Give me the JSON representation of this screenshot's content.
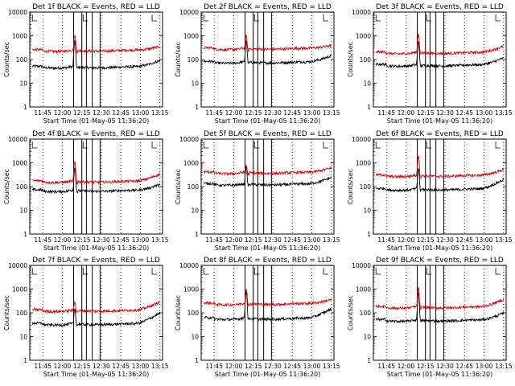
{
  "figure": {
    "start_time": "01-May-05 11:36:20",
    "xlabel": "Start Time (01-May-05 11:36:20)",
    "ylabel": "Counts/sec"
  },
  "chart_data": [
    {
      "type": "line",
      "title": "Det 1f BLACK = Events, RED = LLD",
      "xlabel": "Start Time (01-May-05 11:36:20)",
      "ylabel": "Counts/sec",
      "yscale": "log",
      "ylim": [
        1,
        10000
      ],
      "ytick_labels": [
        "1",
        "10",
        "100",
        "1000",
        "10000"
      ],
      "xtick_labels": [
        "11:45",
        "12:00",
        "12:15",
        "12:30",
        "12:45",
        "13:00",
        "13:15"
      ],
      "x_minutes": [
        0,
        15,
        30,
        45,
        60,
        75,
        90
      ],
      "series": [
        {
          "name": "Events",
          "color": "#000000",
          "base": 50,
          "peak": 600,
          "end": 95
        },
        {
          "name": "LLD",
          "color": "#dd0000",
          "base": 250,
          "peak": 1100,
          "end": 380
        }
      ]
    },
    {
      "type": "line",
      "title": "Det 2f BLACK = Events, RED = LLD",
      "xlabel": "Start Time (01-May-05 11:36:20)",
      "ylabel": "Counts/sec",
      "yscale": "log",
      "ylim": [
        1,
        10000
      ],
      "ytick_labels": [
        "1",
        "10",
        "100",
        "1000",
        "10000"
      ],
      "xtick_labels": [
        "11:45",
        "12:00",
        "12:15",
        "12:30",
        "12:45",
        "13:00",
        "13:15"
      ],
      "x_minutes": [
        0,
        15,
        30,
        45,
        60,
        75,
        90
      ],
      "series": [
        {
          "name": "Events",
          "color": "#000000",
          "base": 80,
          "peak": 600,
          "end": 150
        },
        {
          "name": "LLD",
          "color": "#dd0000",
          "base": 300,
          "peak": 1000,
          "end": 420
        }
      ]
    },
    {
      "type": "line",
      "title": "Det 3f BLACK = Events, RED = LLD",
      "xlabel": "Start Time (01-May-05 11:36:20)",
      "ylabel": "Counts/sec",
      "yscale": "log",
      "ylim": [
        1,
        10000
      ],
      "ytick_labels": [
        "1",
        "10",
        "100",
        "1000",
        "10000"
      ],
      "xtick_labels": [
        "11:45",
        "12:00",
        "12:15",
        "12:30",
        "12:45",
        "13:00",
        "13:15"
      ],
      "x_minutes": [
        0,
        15,
        30,
        45,
        60,
        75,
        90
      ],
      "series": [
        {
          "name": "Events",
          "color": "#000000",
          "base": 60,
          "peak": 600,
          "end": 120
        },
        {
          "name": "LLD",
          "color": "#dd0000",
          "base": 200,
          "peak": 1300,
          "end": 380
        }
      ]
    },
    {
      "type": "line",
      "title": "Det 4f BLACK = Events, RED = LLD",
      "xlabel": "Start Time (01-May-05 11:36:20)",
      "ylabel": "Counts/sec",
      "yscale": "log",
      "ylim": [
        1,
        10000
      ],
      "ytick_labels": [
        "1",
        "10",
        "100",
        "1000",
        "10000"
      ],
      "xtick_labels": [
        "11:45",
        "12:00",
        "12:15",
        "12:30",
        "12:45",
        "13:00",
        "13:15"
      ],
      "x_minutes": [
        0,
        15,
        30,
        45,
        60,
        75,
        90
      ],
      "series": [
        {
          "name": "Events",
          "color": "#000000",
          "base": 70,
          "peak": 600,
          "end": 130
        },
        {
          "name": "LLD",
          "color": "#dd0000",
          "base": 170,
          "peak": 1100,
          "end": 350
        }
      ]
    },
    {
      "type": "line",
      "title": "Det 5f BLACK = Events, RED = LLD",
      "xlabel": "Start Time (01-May-05 11:36:20)",
      "ylabel": "Counts/sec",
      "yscale": "log",
      "ylim": [
        1,
        10000
      ],
      "ytick_labels": [
        "1",
        "10",
        "100",
        "1000",
        "10000"
      ],
      "xtick_labels": [
        "11:45",
        "12:00",
        "12:15",
        "12:30",
        "12:45",
        "13:00",
        "13:15"
      ],
      "x_minutes": [
        0,
        15,
        30,
        45,
        60,
        75,
        90
      ],
      "series": [
        {
          "name": "Events",
          "color": "#000000",
          "base": 130,
          "peak": 700,
          "end": 250
        },
        {
          "name": "LLD",
          "color": "#dd0000",
          "base": 400,
          "peak": 800,
          "end": 650
        }
      ]
    },
    {
      "type": "line",
      "title": "Det 6f BLACK = Events, RED = LLD",
      "xlabel": "Start Time (01-May-05 11:36:20)",
      "ylabel": "Counts/sec",
      "yscale": "log",
      "ylim": [
        1,
        10000
      ],
      "ytick_labels": [
        "1",
        "10",
        "100",
        "1000",
        "10000"
      ],
      "xtick_labels": [
        "11:45",
        "12:00",
        "12:15",
        "12:30",
        "12:45",
        "13:00",
        "13:15"
      ],
      "x_minutes": [
        0,
        15,
        30,
        45,
        60,
        75,
        90
      ],
      "series": [
        {
          "name": "Events",
          "color": "#000000",
          "base": 80,
          "peak": 600,
          "end": 200
        },
        {
          "name": "LLD",
          "color": "#dd0000",
          "base": 300,
          "peak": 2000,
          "end": 550
        }
      ]
    },
    {
      "type": "line",
      "title": "Det 7f BLACK = Events, RED = LLD",
      "xlabel": "Start Time (01-May-05 11:36:20)",
      "ylabel": "Counts/sec",
      "yscale": "log",
      "ylim": [
        1,
        10000
      ],
      "ytick_labels": [
        "1",
        "10",
        "100",
        "1000",
        "10000"
      ],
      "xtick_labels": [
        "11:45",
        "12:00",
        "12:15",
        "12:30",
        "12:45",
        "13:00",
        "13:15"
      ],
      "x_minutes": [
        0,
        15,
        30,
        45,
        60,
        75,
        90
      ],
      "series": [
        {
          "name": "Events",
          "color": "#000000",
          "base": 35,
          "peak": 150,
          "end": 100
        },
        {
          "name": "LLD",
          "color": "#dd0000",
          "base": 130,
          "peak": 300,
          "end": 300
        }
      ]
    },
    {
      "type": "line",
      "title": "Det 8f BLACK = Events, RED = LLD",
      "xlabel": "Start Time (01-May-05 11:36:20)",
      "ylabel": "Counts/sec",
      "yscale": "log",
      "ylim": [
        1,
        10000
      ],
      "ytick_labels": [
        "1",
        "10",
        "100",
        "1000",
        "10000"
      ],
      "xtick_labels": [
        "11:45",
        "12:00",
        "12:15",
        "12:30",
        "12:45",
        "13:00",
        "13:15"
      ],
      "x_minutes": [
        0,
        15,
        30,
        45,
        60,
        75,
        90
      ],
      "series": [
        {
          "name": "Events",
          "color": "#000000",
          "base": 60,
          "peak": 800,
          "end": 150
        },
        {
          "name": "LLD",
          "color": "#dd0000",
          "base": 250,
          "peak": 1100,
          "end": 380
        }
      ]
    },
    {
      "type": "line",
      "title": "Det 9f BLACK = Events, RED = LLD",
      "xlabel": "Start Time (01-May-05 11:36:20)",
      "ylabel": "Counts/sec",
      "yscale": "log",
      "ylim": [
        1,
        10000
      ],
      "ytick_labels": [
        "1",
        "10",
        "100",
        "1000",
        "10000"
      ],
      "xtick_labels": [
        "11:45",
        "12:00",
        "12:15",
        "12:30",
        "12:45",
        "13:00",
        "13:15"
      ],
      "x_minutes": [
        0,
        15,
        30,
        45,
        60,
        75,
        90
      ],
      "series": [
        {
          "name": "Events",
          "color": "#000000",
          "base": 50,
          "peak": 700,
          "end": 100
        },
        {
          "name": "LLD",
          "color": "#dd0000",
          "base": 180,
          "peak": 1100,
          "end": 380
        }
      ]
    }
  ],
  "markers": {
    "event_minutes": [
      23.7,
      30,
      33.5,
      38,
      44
    ]
  },
  "colors": {
    "events": "#000000",
    "lld": "#dd0000",
    "axes": "#000000",
    "background": "#ffffff"
  }
}
